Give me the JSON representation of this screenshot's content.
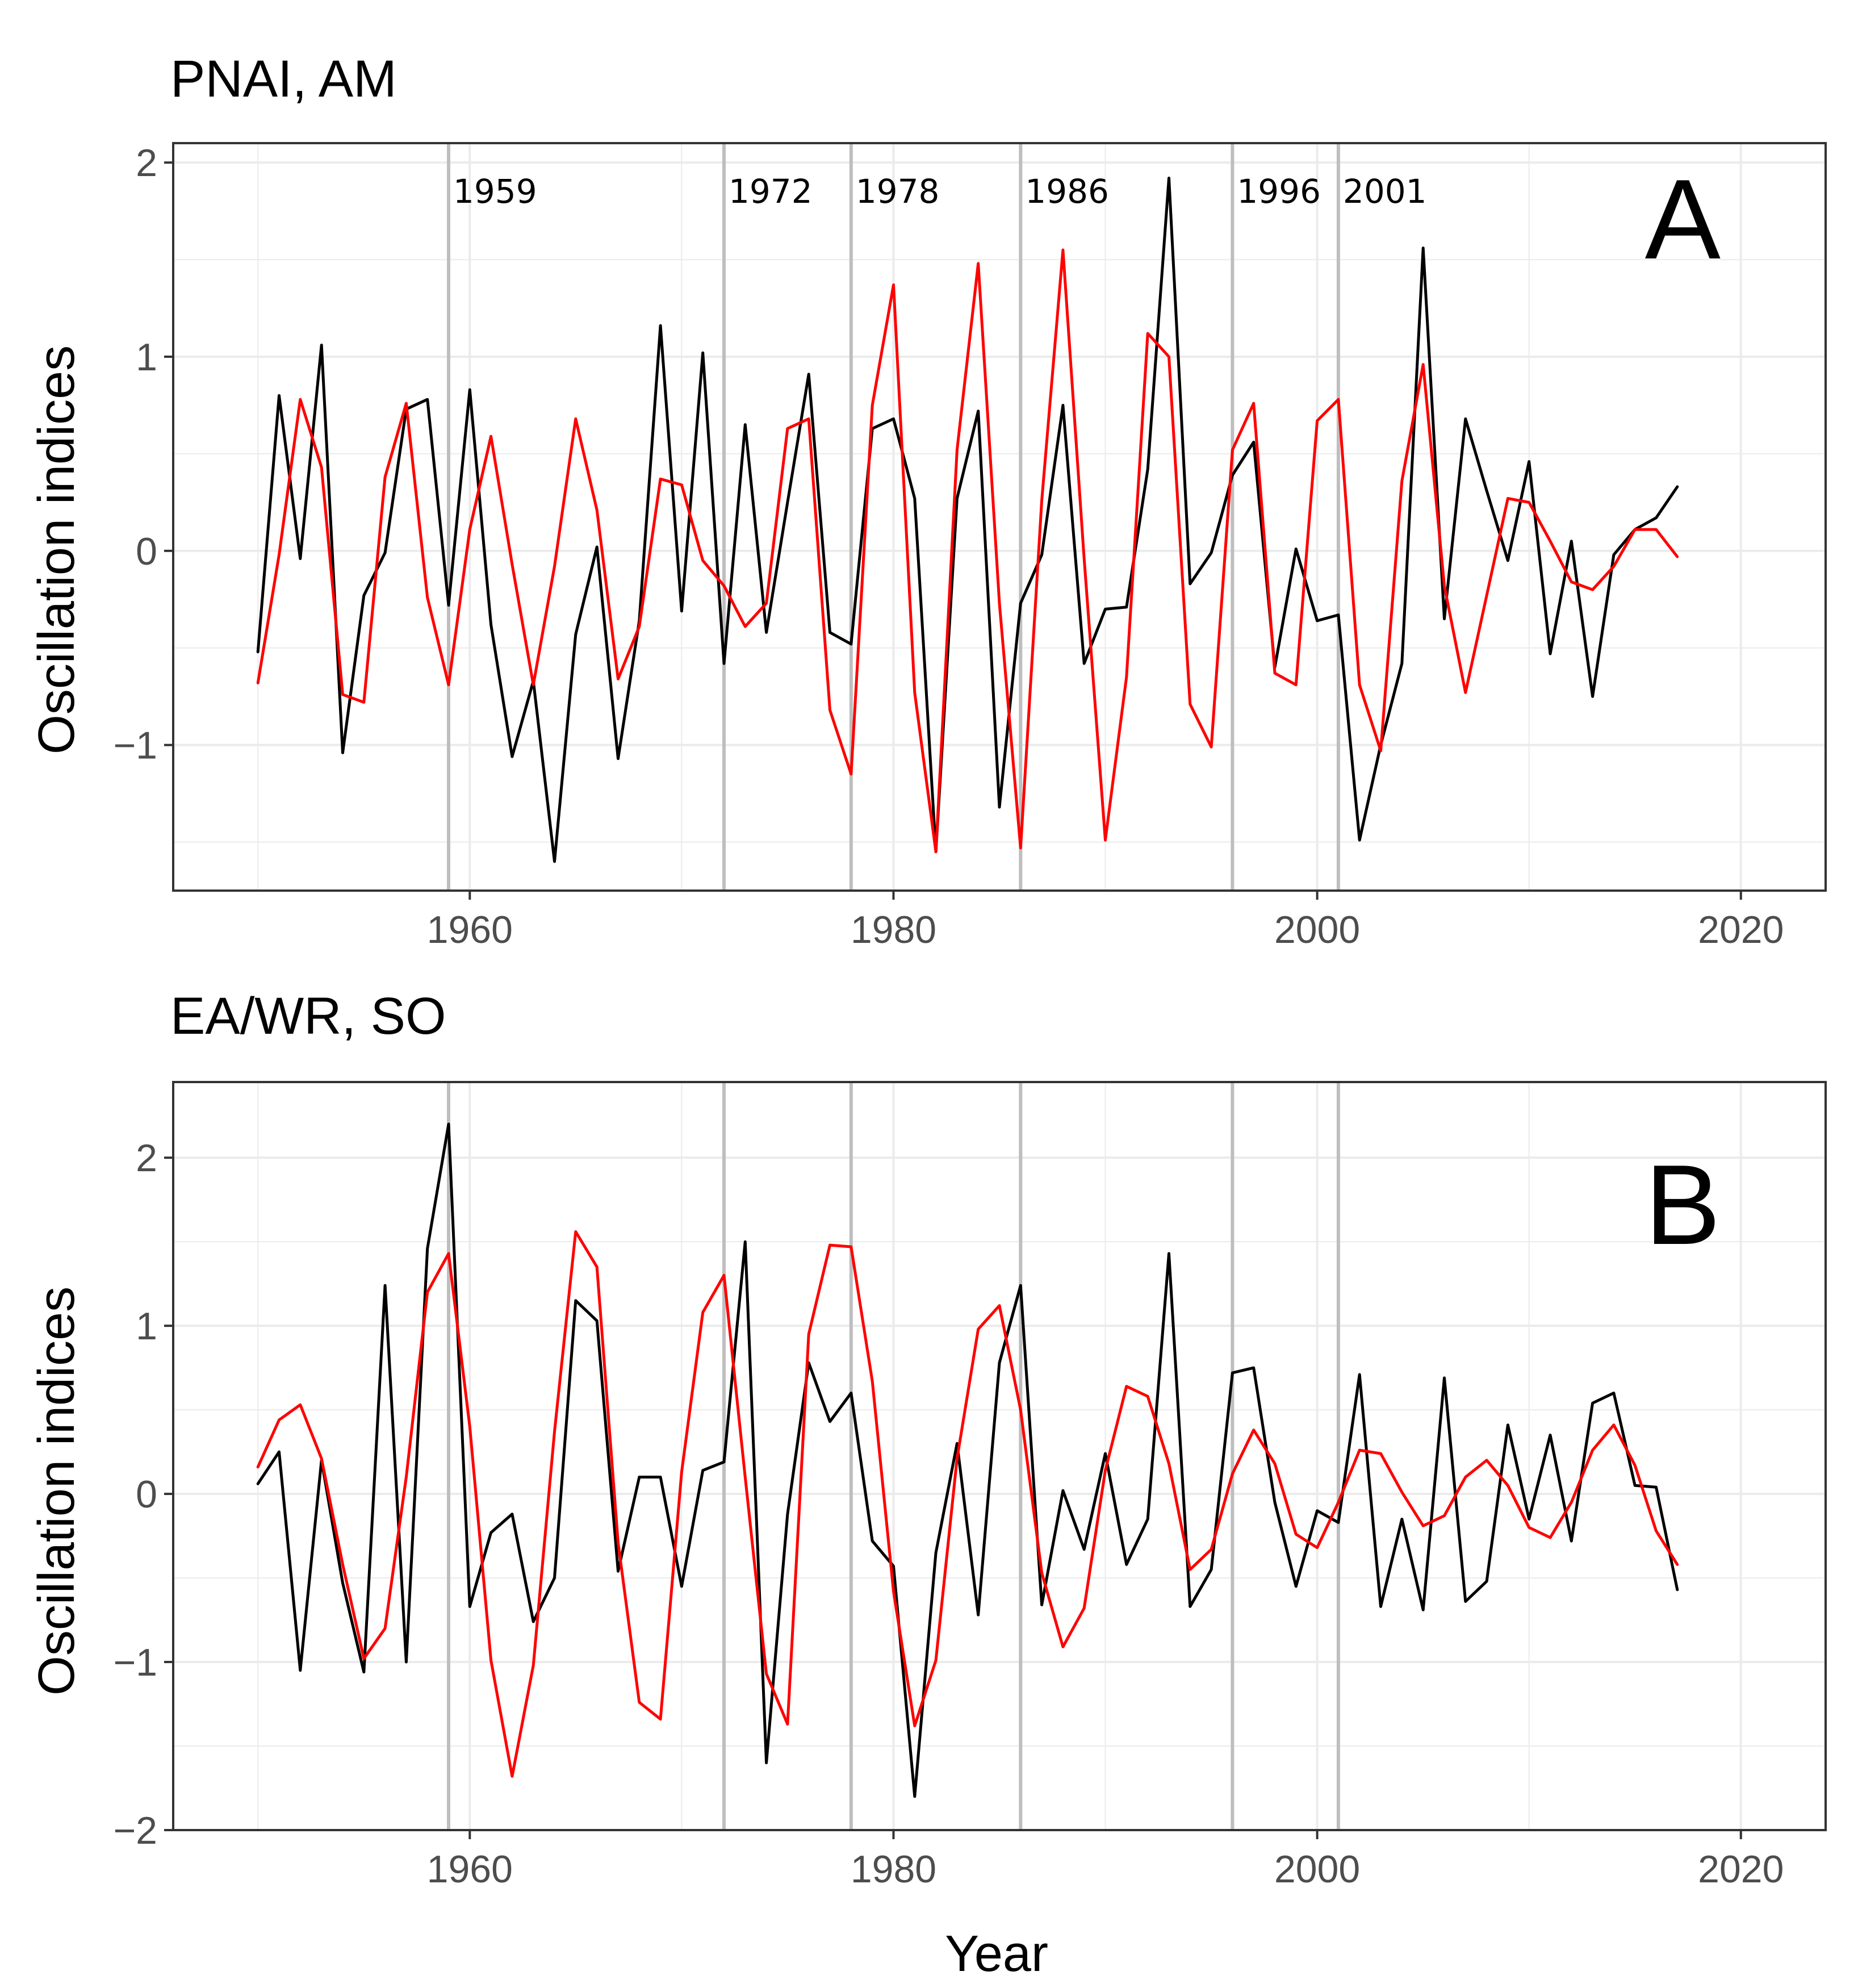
{
  "chart_data": [
    {
      "type": "line",
      "title": "PNAI, AM",
      "panel_label": "A",
      "xlabel": "",
      "ylabel": "Oscillation indices",
      "xlim": [
        1946,
        2024
      ],
      "ylim": [
        -1.75,
        2.1
      ],
      "x_ticks": [
        1960,
        1980,
        2000,
        2020
      ],
      "y_ticks": [
        -1,
        0,
        1,
        2
      ],
      "grid": true,
      "vertical_lines": [
        {
          "year": 1959,
          "label": "1959"
        },
        {
          "year": 1972,
          "label": "1972"
        },
        {
          "year": 1978,
          "label": "1978"
        },
        {
          "year": 1986,
          "label": "1986"
        },
        {
          "year": 1996,
          "label": "1996"
        },
        {
          "year": 2001,
          "label": "2001"
        }
      ],
      "x": [
        1950,
        1951,
        1952,
        1953,
        1954,
        1955,
        1956,
        1957,
        1958,
        1959,
        1960,
        1961,
        1962,
        1963,
        1964,
        1965,
        1966,
        1967,
        1968,
        1969,
        1970,
        1971,
        1972,
        1973,
        1974,
        1975,
        1976,
        1977,
        1978,
        1979,
        1980,
        1981,
        1982,
        1983,
        1984,
        1985,
        1986,
        1987,
        1988,
        1989,
        1990,
        1991,
        1992,
        1993,
        1994,
        1995,
        1996,
        1997,
        1998,
        1999,
        2000,
        2001,
        2002,
        2003,
        2004,
        2005,
        2006,
        2007,
        2008,
        2009,
        2010,
        2011,
        2012,
        2013,
        2014,
        2015,
        2016,
        2017
      ],
      "series": [
        {
          "color": "#000000",
          "values": [
            -0.52,
            0.8,
            -0.04,
            1.06,
            -1.04,
            -0.23,
            -0.01,
            0.73,
            0.78,
            -0.28,
            0.83,
            -0.38,
            -1.06,
            -0.67,
            -1.6,
            -0.43,
            0.02,
            -1.07,
            -0.36,
            1.16,
            -0.31,
            1.02,
            -0.58,
            0.65,
            -0.42,
            0.25,
            0.91,
            -0.42,
            -0.48,
            0.63,
            0.68,
            0.27,
            -1.55,
            0.27,
            0.72,
            -1.32,
            -0.27,
            -0.02,
            0.75,
            -0.58,
            -0.3,
            -0.29,
            0.42,
            1.92,
            -0.17,
            -0.01,
            0.39,
            0.56,
            -0.6,
            0.01,
            -0.36,
            -0.33,
            -1.49,
            -1.0,
            -0.58,
            1.56,
            -0.35,
            0.68,
            0.31,
            -0.05,
            0.46,
            -0.53,
            0.05,
            -0.75,
            -0.02,
            0.11,
            0.17,
            0.33
          ]
        },
        {
          "color": "#ff0000",
          "values": [
            -0.68,
            -0.02,
            0.78,
            0.43,
            -0.74,
            -0.78,
            0.38,
            0.76,
            -0.24,
            -0.69,
            0.11,
            0.59,
            -0.07,
            -0.69,
            -0.08,
            0.68,
            0.21,
            -0.66,
            -0.39,
            0.37,
            0.34,
            -0.05,
            -0.18,
            -0.39,
            -0.27,
            0.63,
            0.68,
            -0.82,
            -1.15,
            0.75,
            1.37,
            -0.73,
            -1.55,
            0.52,
            1.48,
            -0.27,
            -1.53,
            0.26,
            1.55,
            -0.04,
            -1.49,
            -0.65,
            1.12,
            1.0,
            -0.79,
            -1.01,
            0.52,
            0.76,
            -0.63,
            -0.69,
            0.67,
            0.78,
            -0.69,
            -1.03,
            0.36,
            0.96,
            -0.18,
            -0.73,
            -0.23,
            0.27,
            0.25,
            0.05,
            -0.16,
            -0.2,
            -0.08,
            0.11,
            0.11,
            -0.03
          ]
        }
      ]
    },
    {
      "type": "line",
      "title": "EA/WR, SO",
      "panel_label": "B",
      "xlabel": "Year",
      "ylabel": "Oscillation indices",
      "xlim": [
        1946,
        2024
      ],
      "ylim": [
        -2.0,
        2.45
      ],
      "x_ticks": [
        1960,
        1980,
        2000,
        2020
      ],
      "y_ticks": [
        -2,
        -1,
        0,
        1,
        2
      ],
      "grid": true,
      "vertical_lines": [
        {
          "year": 1959,
          "label": ""
        },
        {
          "year": 1972,
          "label": ""
        },
        {
          "year": 1978,
          "label": ""
        },
        {
          "year": 1986,
          "label": ""
        },
        {
          "year": 1996,
          "label": ""
        },
        {
          "year": 2001,
          "label": ""
        }
      ],
      "x": [
        1950,
        1951,
        1952,
        1953,
        1954,
        1955,
        1956,
        1957,
        1958,
        1959,
        1960,
        1961,
        1962,
        1963,
        1964,
        1965,
        1966,
        1967,
        1968,
        1969,
        1970,
        1971,
        1972,
        1973,
        1974,
        1975,
        1976,
        1977,
        1978,
        1979,
        1980,
        1981,
        1982,
        1983,
        1984,
        1985,
        1986,
        1987,
        1988,
        1989,
        1990,
        1991,
        1992,
        1993,
        1994,
        1995,
        1996,
        1997,
        1998,
        1999,
        2000,
        2001,
        2002,
        2003,
        2004,
        2005,
        2006,
        2007,
        2008,
        2009,
        2010,
        2011,
        2012,
        2013,
        2014,
        2015,
        2016,
        2017
      ],
      "series": [
        {
          "color": "#000000",
          "values": [
            0.06,
            0.25,
            -1.05,
            0.2,
            -0.53,
            -1.06,
            1.24,
            -1.0,
            1.46,
            2.2,
            -0.67,
            -0.23,
            -0.12,
            -0.76,
            -0.5,
            1.15,
            1.03,
            -0.46,
            0.1,
            0.1,
            -0.55,
            0.14,
            0.19,
            1.5,
            -1.6,
            -0.12,
            0.78,
            0.43,
            0.6,
            -0.28,
            -0.43,
            -1.8,
            -0.35,
            0.3,
            -0.72,
            0.78,
            1.24,
            -0.66,
            0.02,
            -0.33,
            0.24,
            -0.42,
            -0.15,
            1.43,
            -0.67,
            -0.45,
            0.72,
            0.75,
            -0.05,
            -0.55,
            -0.1,
            -0.17,
            0.71,
            -0.67,
            -0.15,
            -0.69,
            0.69,
            -0.64,
            -0.52,
            0.41,
            -0.15,
            0.35,
            -0.28,
            0.54,
            0.6,
            0.05,
            0.04,
            -0.57
          ]
        },
        {
          "color": "#ff0000",
          "values": [
            0.16,
            0.44,
            0.53,
            0.21,
            -0.42,
            -0.98,
            -0.8,
            0.1,
            1.2,
            1.43,
            0.4,
            -0.99,
            -1.68,
            -1.02,
            0.37,
            1.56,
            1.35,
            -0.29,
            -1.24,
            -1.34,
            0.13,
            1.08,
            1.3,
            0.1,
            -1.07,
            -1.37,
            0.95,
            1.48,
            1.47,
            0.67,
            -0.58,
            -1.38,
            -0.99,
            0.21,
            0.98,
            1.12,
            0.5,
            -0.47,
            -0.91,
            -0.68,
            0.14,
            0.64,
            0.58,
            0.18,
            -0.45,
            -0.33,
            0.12,
            0.38,
            0.18,
            -0.24,
            -0.32,
            -0.05,
            0.26,
            0.24,
            0.01,
            -0.19,
            -0.13,
            0.1,
            0.2,
            0.05,
            -0.2,
            -0.26,
            -0.05,
            0.26,
            0.41,
            0.17,
            -0.22,
            -0.42
          ]
        }
      ]
    }
  ]
}
